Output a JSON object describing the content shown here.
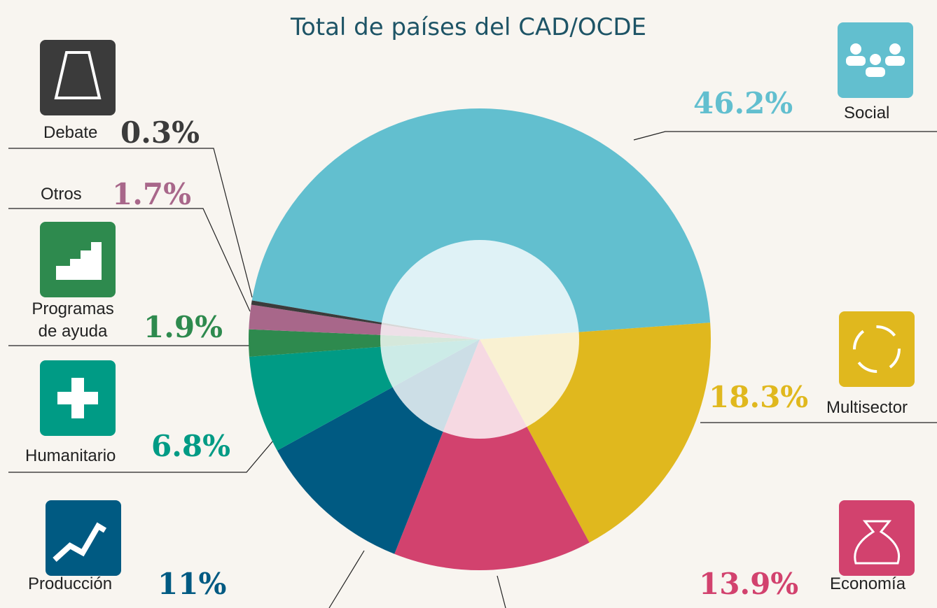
{
  "chart_data": {
    "type": "pie",
    "title": "Total de países del CAD/OCDE",
    "categories": [
      "Social",
      "Multisector",
      "Economía",
      "Producción",
      "Humanitario",
      "Programas de ayuda",
      "Otros",
      "Debate"
    ],
    "values": [
      46.2,
      18.3,
      13.9,
      11,
      6.8,
      1.9,
      1.7,
      0.3
    ],
    "value_labels": [
      "46.2%",
      "18.3%",
      "13.9%",
      "11%",
      "6.8%",
      "1.9%",
      "1.7%",
      "0.3%"
    ],
    "colors": [
      "#62bfcf",
      "#e0b81e",
      "#d2426e",
      "#005a82",
      "#009b85",
      "#2e8a4e",
      "#a8678a",
      "#3b3b3b"
    ]
  }
}
